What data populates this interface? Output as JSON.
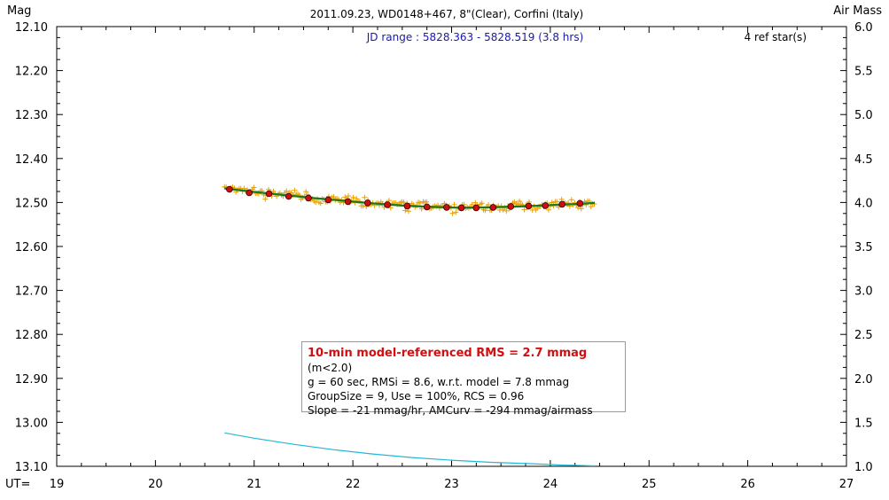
{
  "header": {
    "title": "2011.09.23, WD0148+467, 8\"(Clear), Corfini (Italy)",
    "left_axis_title": "Mag",
    "right_axis_title": "Air Mass",
    "ut_label": "UT=",
    "jd_range": "JD range : 5828.363 - 5828.519 (3.8 hrs)",
    "ref_stars": "4 ref star(s)"
  },
  "stats": {
    "line1_highlight": "10-min model-referenced RMS = 2.7 mmag",
    "line1_suffix": "(m<2.0)",
    "line2": "g = 60 sec, RMSi = 8.6, w.r.t. model = 7.8 mmag",
    "line3": "GroupSize = 9, Use = 100%, RCS = 0.96",
    "line4": "Slope = -21 mmag/hr, AMCurv = -294 mmag/airmass"
  },
  "colors": {
    "raw_points": "#e8a000",
    "group_means": "#cc1010",
    "model_line": "#1a7a20",
    "airmass_line": "#22b8d8"
  },
  "chart_data": {
    "type": "scatter",
    "xlabel": "UT=",
    "ylabel": "Mag",
    "y2label": "Air Mass",
    "xlim": [
      19,
      27
    ],
    "ylim": [
      12.1,
      13.1
    ],
    "y_inverted": true,
    "y2lim": [
      1.0,
      6.0
    ],
    "x_ticks": [
      "19",
      "20",
      "21",
      "22",
      "23",
      "24",
      "25",
      "26",
      "27"
    ],
    "y_ticks": [
      "12.10",
      "12.20",
      "12.30",
      "12.40",
      "12.50",
      "12.60",
      "12.70",
      "12.80",
      "12.90",
      "13.00",
      "13.10"
    ],
    "y2_ticks": [
      "6.0",
      "5.5",
      "5.0",
      "4.5",
      "4.0",
      "3.5",
      "3.0",
      "2.5",
      "2.0",
      "1.5",
      "1.0"
    ],
    "series": [
      {
        "kind": "group_means",
        "x": [
          20.75,
          20.95,
          21.15,
          21.35,
          21.55,
          21.75,
          21.95,
          22.15,
          22.35,
          22.55,
          22.75,
          22.95,
          23.1,
          23.25,
          23.42,
          23.6,
          23.78,
          23.95,
          24.12,
          24.3
        ],
        "y": [
          12.47,
          12.478,
          12.48,
          12.486,
          12.49,
          12.494,
          12.498,
          12.501,
          12.505,
          12.508,
          12.51,
          12.511,
          12.512,
          12.512,
          12.511,
          12.509,
          12.508,
          12.507,
          12.504,
          12.502
        ]
      },
      {
        "kind": "model",
        "x": [
          20.7,
          21.0,
          21.3,
          21.6,
          21.9,
          22.2,
          22.5,
          22.8,
          23.1,
          23.4,
          23.7,
          24.0,
          24.3,
          24.45
        ],
        "y": [
          12.468,
          12.476,
          12.483,
          12.49,
          12.496,
          12.502,
          12.507,
          12.51,
          12.512,
          12.511,
          12.509,
          12.506,
          12.503,
          12.501
        ]
      },
      {
        "kind": "airmass",
        "axis": "right",
        "x": [
          20.7,
          21.0,
          21.4,
          21.8,
          22.2,
          22.6,
          23.0,
          23.4,
          23.8,
          24.1,
          24.45
        ],
        "y": [
          1.38,
          1.32,
          1.25,
          1.19,
          1.14,
          1.1,
          1.07,
          1.045,
          1.03,
          1.015,
          1.005
        ]
      }
    ]
  }
}
